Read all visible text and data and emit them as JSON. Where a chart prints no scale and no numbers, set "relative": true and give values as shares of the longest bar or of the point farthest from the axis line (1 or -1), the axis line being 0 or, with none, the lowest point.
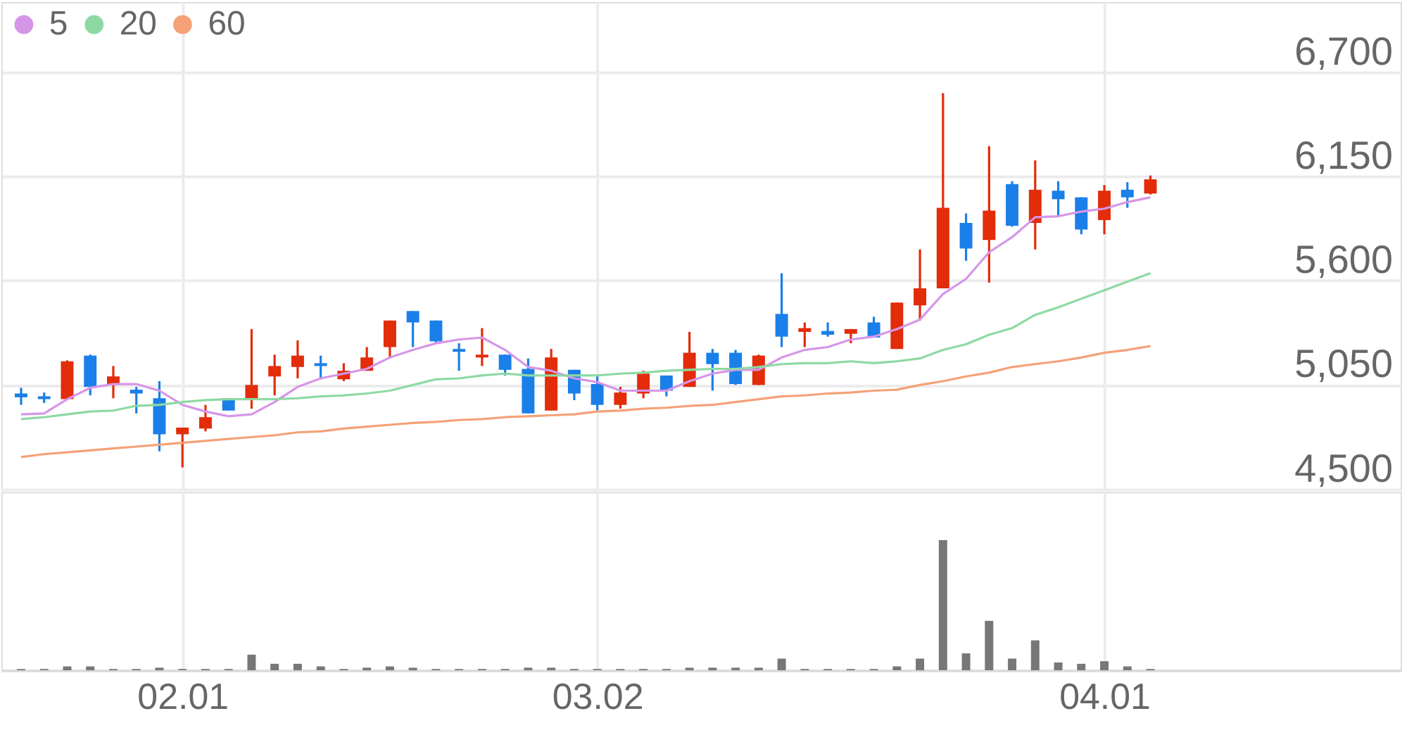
{
  "chart_data": [
    {
      "type": "candlestick",
      "categories": [
        null,
        null,
        null,
        null,
        null,
        null,
        null,
        "02.01",
        null,
        null,
        null,
        null,
        null,
        null,
        null,
        null,
        null,
        null,
        null,
        null,
        null,
        null,
        null,
        null,
        null,
        "03.02",
        null,
        null,
        null,
        null,
        null,
        null,
        null,
        null,
        null,
        null,
        null,
        null,
        null,
        null,
        null,
        null,
        null,
        null,
        null,
        null,
        null,
        "04.01",
        null,
        null
      ],
      "ohlc": [
        [
          5005,
          5035,
          4945,
          4985
        ],
        [
          4990,
          5010,
          4955,
          4975
        ],
        [
          4975,
          5180,
          4970,
          5175
        ],
        [
          5205,
          5210,
          4995,
          5040
        ],
        [
          5050,
          5150,
          4980,
          5095
        ],
        [
          5025,
          5040,
          4900,
          5005
        ],
        [
          4980,
          5070,
          4700,
          4790
        ],
        [
          4790,
          4825,
          4615,
          4825
        ],
        [
          4820,
          4945,
          4805,
          4880
        ],
        [
          4980,
          4980,
          4915,
          4915
        ],
        [
          4975,
          5345,
          4925,
          5050
        ],
        [
          5095,
          5210,
          4995,
          5150
        ],
        [
          5145,
          5285,
          5085,
          5205
        ],
        [
          5165,
          5205,
          5080,
          5150
        ],
        [
          5080,
          5165,
          5070,
          5125
        ],
        [
          5125,
          5250,
          5125,
          5195
        ],
        [
          5250,
          5390,
          5190,
          5390
        ],
        [
          5440,
          5440,
          5250,
          5380
        ],
        [
          5390,
          5390,
          5270,
          5280
        ],
        [
          5240,
          5270,
          5125,
          5225
        ],
        [
          5195,
          5350,
          5150,
          5210
        ],
        [
          5210,
          5210,
          5100,
          5130
        ],
        [
          5135,
          5190,
          4900,
          4900
        ],
        [
          4915,
          5240,
          4915,
          5195
        ],
        [
          5130,
          5130,
          4970,
          5005
        ],
        [
          5055,
          5100,
          4915,
          4945
        ],
        [
          4945,
          5040,
          4925,
          5010
        ],
        [
          5005,
          5125,
          4980,
          5110
        ],
        [
          5100,
          5100,
          4990,
          5020
        ],
        [
          5040,
          5330,
          5040,
          5220
        ],
        [
          5220,
          5240,
          5020,
          5160
        ],
        [
          5220,
          5235,
          5050,
          5055
        ],
        [
          5050,
          5210,
          5050,
          5205
        ],
        [
          5425,
          5640,
          5250,
          5305
        ],
        [
          5330,
          5380,
          5250,
          5350
        ],
        [
          5335,
          5380,
          5305,
          5315
        ],
        [
          5320,
          5345,
          5270,
          5345
        ],
        [
          5380,
          5410,
          5300,
          5300
        ],
        [
          5240,
          5485,
          5240,
          5485
        ],
        [
          5470,
          5765,
          5390,
          5560
        ],
        [
          5560,
          6590,
          5560,
          5985
        ],
        [
          5905,
          5955,
          5705,
          5770
        ],
        [
          5815,
          6310,
          5590,
          5970
        ],
        [
          6110,
          6125,
          5885,
          5890
        ],
        [
          5905,
          6235,
          5765,
          6080
        ],
        [
          6075,
          6125,
          5935,
          6030
        ],
        [
          6040,
          6040,
          5845,
          5870
        ],
        [
          5920,
          6105,
          5845,
          6075
        ],
        [
          6080,
          6120,
          5985,
          6040
        ],
        [
          6060,
          6155,
          6055,
          6135
        ]
      ],
      "colors": [
        "#1a7fe8",
        "#1a7fe8",
        "#e22c0a",
        "#1a7fe8",
        "#e22c0a",
        "#1a7fe8",
        "#1a7fe8",
        "#e22c0a",
        "#e22c0a",
        "#1a7fe8",
        "#e22c0a",
        "#e22c0a",
        "#e22c0a",
        "#1a7fe8",
        "#e22c0a",
        "#e22c0a",
        "#e22c0a",
        "#1a7fe8",
        "#1a7fe8",
        "#1a7fe8",
        "#e22c0a",
        "#1a7fe8",
        "#1a7fe8",
        "#e22c0a",
        "#1a7fe8",
        "#1a7fe8",
        "#e22c0a",
        "#e22c0a",
        "#1a7fe8",
        "#e22c0a",
        "#1a7fe8",
        "#1a7fe8",
        "#e22c0a",
        "#1a7fe8",
        "#e22c0a",
        "#1a7fe8",
        "#e22c0a",
        "#1a7fe8",
        "#e22c0a",
        "#e22c0a",
        "#e22c0a",
        "#1a7fe8",
        "#e22c0a",
        "#1a7fe8",
        "#e22c0a",
        "#1a7fe8",
        "#1a7fe8",
        "#e22c0a",
        "#1a7fe8",
        "#e22c0a"
      ],
      "series": [
        {
          "name": "5",
          "type": "line",
          "color": "#d596e8",
          "values": [
            4895,
            4900,
            4975,
            5035,
            5055,
            5055,
            5020,
            4945,
            4910,
            4885,
            4895,
            4960,
            5040,
            5085,
            5110,
            5135,
            5195,
            5235,
            5270,
            5290,
            5300,
            5235,
            5145,
            5125,
            5085,
            5065,
            5020,
            5020,
            5020,
            5070,
            5110,
            5130,
            5130,
            5195,
            5235,
            5250,
            5290,
            5305,
            5345,
            5395,
            5530,
            5610,
            5750,
            5830,
            5935,
            5940,
            5965,
            5980,
            6015,
            6040
          ]
        },
        {
          "name": "20",
          "type": "line",
          "color": "#8dd9a3",
          "values": [
            4870,
            4880,
            4895,
            4910,
            4915,
            4940,
            4945,
            4960,
            4970,
            4975,
            4975,
            4975,
            4980,
            4990,
            4995,
            5005,
            5020,
            5050,
            5080,
            5085,
            5100,
            5110,
            5100,
            5100,
            5100,
            5100,
            5110,
            5115,
            5125,
            5130,
            5135,
            5135,
            5145,
            5160,
            5165,
            5165,
            5175,
            5165,
            5175,
            5190,
            5235,
            5265,
            5315,
            5350,
            5420,
            5460,
            5505,
            5550,
            5595,
            5640
          ]
        },
        {
          "name": "60",
          "type": "line",
          "color": "#f5a178",
          "values": [
            4670,
            4685,
            4695,
            4705,
            4715,
            4725,
            4735,
            4745,
            4755,
            4765,
            4775,
            4785,
            4800,
            4805,
            4820,
            4830,
            4840,
            4850,
            4855,
            4865,
            4870,
            4880,
            4885,
            4890,
            4895,
            4910,
            4915,
            4925,
            4930,
            4940,
            4945,
            4960,
            4975,
            4990,
            4995,
            5005,
            5010,
            5020,
            5025,
            5050,
            5070,
            5095,
            5115,
            5145,
            5160,
            5175,
            5195,
            5220,
            5235,
            5255
          ]
        }
      ],
      "ylim": [
        4500,
        7070
      ],
      "yticks": [
        {
          "value": 4500,
          "label": "4,500"
        },
        {
          "value": 5050,
          "label": "5,050"
        },
        {
          "value": 5600,
          "label": "5,600"
        },
        {
          "value": 6150,
          "label": "6,150"
        },
        {
          "value": 6700,
          "label": "6,700"
        }
      ],
      "grid": true,
      "legend": "top left",
      "tick_labels": "y",
      "line_style": "solid",
      "marker": "none"
    },
    {
      "type": "bar",
      "relative": true,
      "color": "#777777",
      "categories": [
        null,
        null,
        null,
        null,
        null,
        null,
        null,
        "02.01",
        null,
        null,
        null,
        null,
        null,
        null,
        null,
        null,
        null,
        null,
        null,
        null,
        null,
        null,
        null,
        null,
        null,
        "03.02",
        null,
        null,
        null,
        null,
        null,
        null,
        null,
        null,
        null,
        null,
        null,
        null,
        null,
        null,
        null,
        null,
        null,
        null,
        null,
        null,
        null,
        "04.01",
        null,
        null
      ],
      "values": [
        0.01,
        0.01,
        0.03,
        0.03,
        0.01,
        0.01,
        0.02,
        0.01,
        0.01,
        0.01,
        0.12,
        0.05,
        0.05,
        0.03,
        0.01,
        0.02,
        0.03,
        0.02,
        0.01,
        0.01,
        0.01,
        0.01,
        0.02,
        0.02,
        0.01,
        0.01,
        0.01,
        0.01,
        0.01,
        0.02,
        0.02,
        0.02,
        0.02,
        0.09,
        0.01,
        0.01,
        0.01,
        0.01,
        0.03,
        0.09,
        1,
        0.13,
        0.38,
        0.09,
        0.23,
        0.06,
        0.05,
        0.07,
        0.03,
        0.01
      ],
      "grid": "x",
      "tick_labels": "x"
    }
  ]
}
